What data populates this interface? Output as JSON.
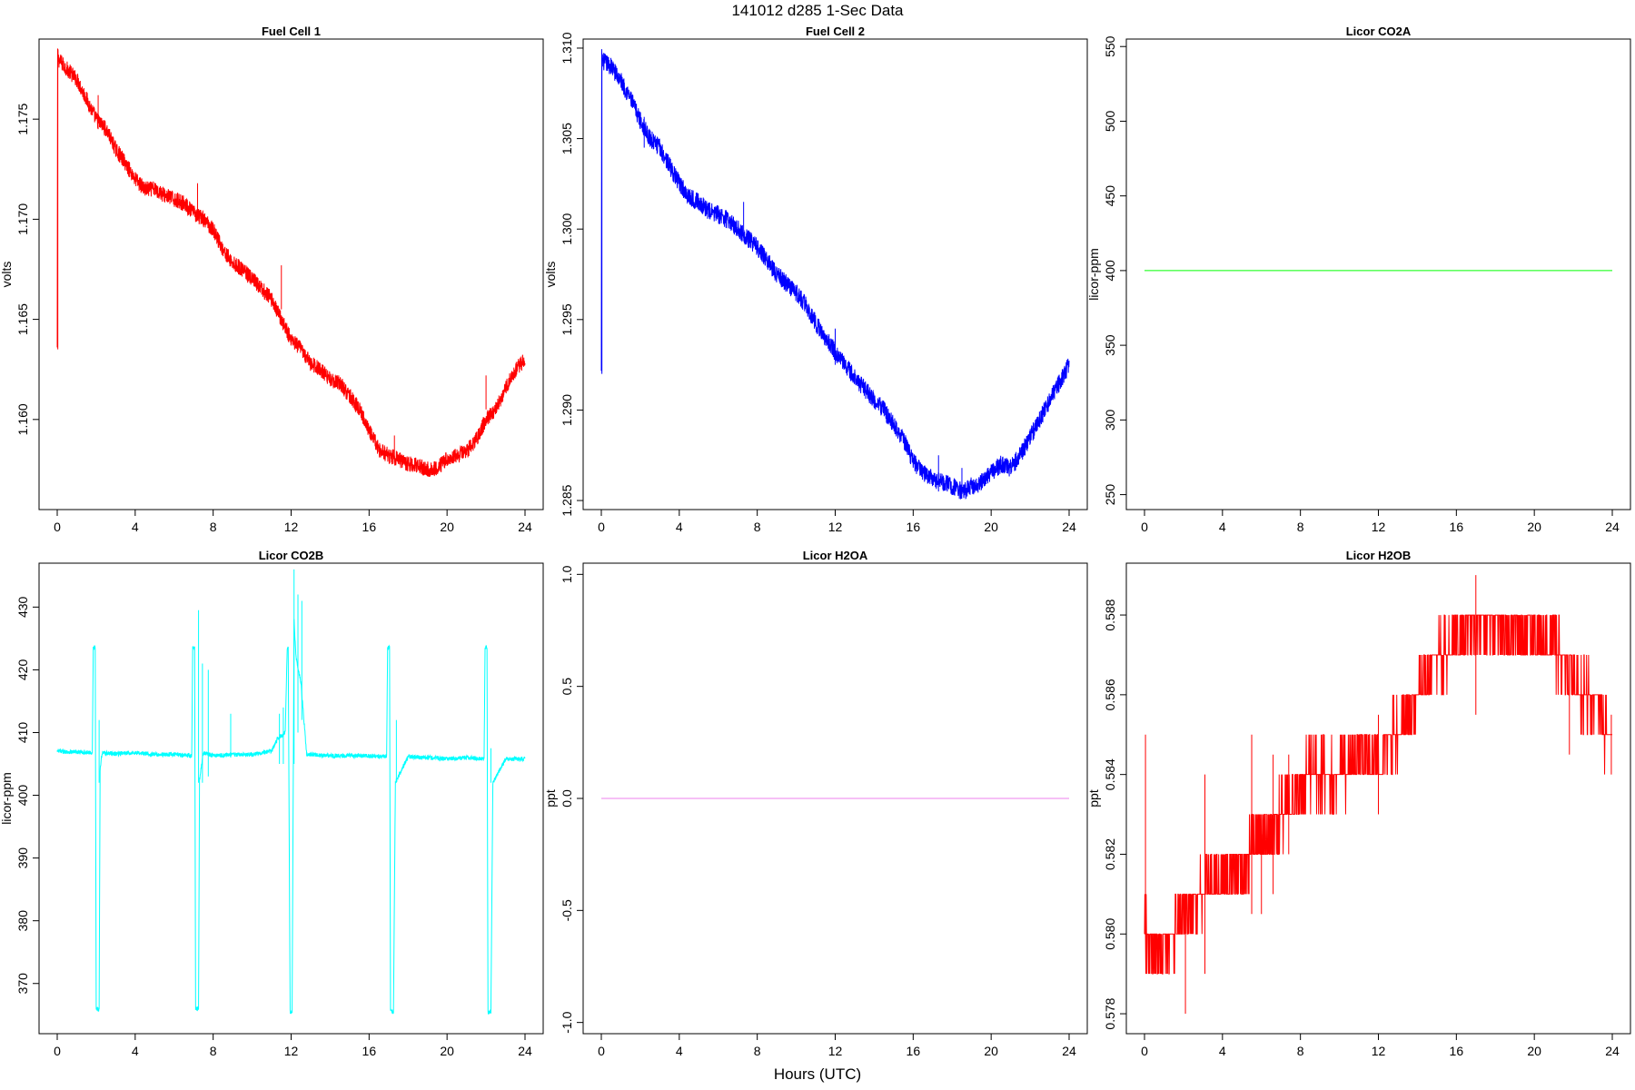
{
  "title": "141012   d285   1-Sec Data",
  "xlabel": "Hours (UTC)",
  "chart_data": [
    {
      "type": "line",
      "title": "Fuel Cell 1",
      "ylabel": "volts",
      "xlim": [
        0,
        24
      ],
      "ylim": [
        1.1555,
        1.179
      ],
      "xticks": [
        0,
        4,
        8,
        12,
        16,
        20,
        24
      ],
      "yticks": [
        1.16,
        1.165,
        1.17,
        1.175
      ],
      "ytick_labels": [
        "1.160",
        "1.165",
        "1.170",
        "1.175"
      ],
      "color": "#ff0000",
      "noise": 0.0004,
      "series": [
        {
          "x": [
            0,
            0.02,
            0.05,
            0.5,
            1,
            1.5,
            2,
            2.5,
            3,
            3.5,
            4,
            4.5,
            5,
            5.5,
            6,
            6.5,
            7,
            7.5,
            8,
            8.5,
            9,
            9.5,
            10,
            10.5,
            11,
            11.5,
            12,
            12.5,
            13,
            13.5,
            14,
            14.5,
            15,
            15.5,
            16,
            16.5,
            17,
            17.5,
            18,
            18.5,
            19,
            19.5,
            20,
            20.5,
            21,
            21.5,
            22,
            22.5,
            23,
            23.5,
            24
          ],
          "y": [
            1.1635,
            1.1785,
            1.178,
            1.1775,
            1.177,
            1.176,
            1.175,
            1.1745,
            1.1735,
            1.1728,
            1.172,
            1.1715,
            1.1715,
            1.1712,
            1.171,
            1.1708,
            1.1703,
            1.17,
            1.1695,
            1.1685,
            1.1678,
            1.1675,
            1.167,
            1.1665,
            1.166,
            1.165,
            1.164,
            1.1635,
            1.1628,
            1.1625,
            1.162,
            1.1618,
            1.1612,
            1.1605,
            1.1595,
            1.1585,
            1.1582,
            1.158,
            1.1578,
            1.1577,
            1.1575,
            1.1576,
            1.158,
            1.1582,
            1.1584,
            1.159,
            1.16,
            1.1605,
            1.1615,
            1.1625,
            1.163
          ]
        }
      ],
      "spikes": [
        [
          0.03,
          1.1635,
          1.1785
        ],
        [
          2.1,
          1.1745,
          1.1762
        ],
        [
          7.2,
          1.1702,
          1.1718
        ],
        [
          11.5,
          1.1655,
          1.1677
        ],
        [
          17.3,
          1.158,
          1.1592
        ],
        [
          22.0,
          1.1605,
          1.1622
        ]
      ]
    },
    {
      "type": "line",
      "title": "Fuel Cell 2",
      "ylabel": "volts",
      "xlim": [
        0,
        24
      ],
      "ylim": [
        1.2845,
        1.3105
      ],
      "xticks": [
        0,
        4,
        8,
        12,
        16,
        20,
        24
      ],
      "yticks": [
        1.285,
        1.29,
        1.295,
        1.3,
        1.305,
        1.31
      ],
      "ytick_labels": [
        "1.285",
        "1.290",
        "1.295",
        "1.300",
        "1.305",
        "1.310"
      ],
      "color": "#0000ff",
      "noise": 0.0005,
      "series": [
        {
          "x": [
            0,
            0.02,
            0.05,
            0.5,
            1,
            1.5,
            2,
            2.5,
            3,
            3.5,
            4,
            4.5,
            5,
            5.5,
            6,
            6.5,
            7,
            7.5,
            8,
            8.5,
            9,
            9.5,
            10,
            10.5,
            11,
            11.5,
            12,
            12.5,
            13,
            13.5,
            14,
            14.5,
            15,
            15.5,
            16,
            16.5,
            17,
            17.5,
            18,
            18.5,
            19,
            19.5,
            20,
            20.5,
            21,
            21.5,
            22,
            22.5,
            23,
            23.5,
            24
          ],
          "y": [
            1.292,
            1.3095,
            1.3093,
            1.309,
            1.3082,
            1.3072,
            1.306,
            1.305,
            1.3045,
            1.3035,
            1.3025,
            1.3018,
            1.3015,
            1.301,
            1.3008,
            1.3005,
            1.3,
            1.2995,
            1.299,
            1.2983,
            1.2975,
            1.297,
            1.2965,
            1.2958,
            1.2948,
            1.294,
            1.2932,
            1.2925,
            1.2918,
            1.2912,
            1.2905,
            1.29,
            1.2892,
            1.2884,
            1.2872,
            1.2865,
            1.2862,
            1.286,
            1.2858,
            1.2855,
            1.2858,
            1.286,
            1.2865,
            1.287,
            1.2868,
            1.2875,
            1.2885,
            1.2895,
            1.2905,
            1.2915,
            1.2925
          ]
        }
      ],
      "spikes": [
        [
          0.03,
          1.292,
          1.3095
        ],
        [
          2.2,
          1.3045,
          1.3062
        ],
        [
          7.3,
          1.2995,
          1.3015
        ],
        [
          12.0,
          1.2925,
          1.2945
        ],
        [
          17.3,
          1.2855,
          1.2875
        ],
        [
          18.5,
          1.2855,
          1.2868
        ]
      ]
    },
    {
      "type": "line",
      "title": "Licor CO2A",
      "ylabel": "licor-ppm",
      "xlim": [
        0,
        24
      ],
      "ylim": [
        240,
        555
      ],
      "xticks": [
        0,
        4,
        8,
        12,
        16,
        20,
        24
      ],
      "yticks": [
        250,
        300,
        350,
        400,
        450,
        500,
        550
      ],
      "ytick_labels": [
        "250",
        "300",
        "350",
        "400",
        "450",
        "500",
        "550"
      ],
      "color": "#00ff00",
      "noise": 0,
      "series": [
        {
          "x": [
            0,
            24
          ],
          "y": [
            400,
            400
          ]
        }
      ],
      "spikes": []
    },
    {
      "type": "line",
      "title": "Licor CO2B",
      "ylabel": "licor-ppm",
      "xlim": [
        0,
        24
      ],
      "ylim": [
        362,
        437
      ],
      "xticks": [
        0,
        4,
        8,
        12,
        16,
        20,
        24
      ],
      "yticks": [
        370,
        380,
        390,
        400,
        410,
        420,
        430
      ],
      "ytick_labels": [
        "370",
        "380",
        "390",
        "400",
        "410",
        "420",
        "430"
      ],
      "color": "#00ffff",
      "noise": 0.35,
      "series": [
        {
          "x": [
            0,
            1.8,
            1.85,
            1.95,
            2.0,
            2.05,
            2.15,
            2.2,
            2.3,
            3,
            4,
            5,
            6,
            6.9,
            6.95,
            7.05,
            7.1,
            7.15,
            7.25,
            7.3,
            7.5,
            8,
            9,
            10,
            11,
            11.3,
            11.7,
            11.8,
            11.85,
            11.95,
            12.0,
            12.05,
            12.15,
            12.25,
            12.5,
            12.8,
            13,
            14,
            15,
            16,
            16.9,
            16.95,
            17.05,
            17.1,
            17.15,
            17.25,
            17.35,
            18,
            19,
            20,
            21,
            21.9,
            21.95,
            22.05,
            22.1,
            22.15,
            22.25,
            22.35,
            23,
            24
          ],
          "y": [
            407,
            406.8,
            423.5,
            423.5,
            366,
            366,
            366,
            404,
            406.8,
            406.6,
            406.8,
            406.5,
            406.5,
            406.3,
            423.5,
            423.5,
            366,
            366,
            366,
            402.5,
            406.8,
            406.3,
            406.5,
            406.5,
            407,
            409,
            410,
            423.5,
            423.5,
            365.5,
            365.5,
            365.5,
            428,
            422,
            418,
            406.5,
            406.5,
            406.3,
            406.3,
            406.3,
            406.2,
            423.5,
            423.5,
            365.5,
            365.5,
            365.5,
            402,
            406.2,
            406,
            405.8,
            406,
            405.8,
            423.5,
            423.5,
            365.5,
            365.5,
            365.5,
            402,
            405.8,
            405.8
          ]
        }
      ],
      "spikes": [
        [
          2.15,
          402,
          412
        ],
        [
          7.25,
          402,
          429.5
        ],
        [
          7.45,
          402,
          421
        ],
        [
          7.75,
          403,
          420
        ],
        [
          8.9,
          406,
          413
        ],
        [
          11.4,
          405,
          413
        ],
        [
          11.6,
          405,
          414
        ],
        [
          12.15,
          405,
          436
        ],
        [
          12.35,
          410,
          432
        ],
        [
          12.55,
          412,
          431
        ],
        [
          17.4,
          402,
          412
        ],
        [
          22.25,
          402,
          407.5
        ]
      ]
    },
    {
      "type": "line",
      "title": "Licor H2OA",
      "ylabel": "ppt",
      "xlim": [
        0,
        24
      ],
      "ylim": [
        -1.05,
        1.05
      ],
      "xticks": [
        0,
        4,
        8,
        12,
        16,
        20,
        24
      ],
      "yticks": [
        -1.0,
        -0.5,
        0.0,
        0.5,
        1.0
      ],
      "ytick_labels": [
        "-1.0",
        "-0.5",
        "0.0",
        "0.5",
        "1.0"
      ],
      "color": "#ee82ee",
      "noise": 0,
      "series": [
        {
          "x": [
            0,
            24
          ],
          "y": [
            0,
            0
          ]
        }
      ],
      "spikes": []
    },
    {
      "type": "line",
      "title": "Licor H2OB",
      "ylabel": "ppt",
      "xlim": [
        0,
        24
      ],
      "ylim": [
        0.5775,
        0.5893
      ],
      "xticks": [
        0,
        4,
        8,
        12,
        16,
        20,
        24
      ],
      "yticks": [
        0.578,
        0.58,
        0.582,
        0.584,
        0.586,
        0.588
      ],
      "ytick_labels": [
        "0.578",
        "0.580",
        "0.582",
        "0.584",
        "0.586",
        "0.588"
      ],
      "color": "#ff0000",
      "noise": 0,
      "series": [
        {
          "x": [
            0,
            0.5,
            1,
            1.5,
            2,
            2.5,
            3,
            3.5,
            4,
            4.5,
            5,
            5.5,
            6,
            6.5,
            7,
            7.5,
            8,
            8.5,
            9,
            9.5,
            10,
            10.5,
            11,
            11.5,
            12,
            12.5,
            13,
            13.5,
            14,
            14.5,
            15,
            15.5,
            16,
            16.5,
            17,
            17.5,
            18,
            18.5,
            19,
            19.5,
            20,
            20.5,
            21,
            21.5,
            22,
            22.5,
            23,
            23.5,
            24
          ],
          "y": [
            0.58,
            0.5795,
            0.5795,
            0.58,
            0.5805,
            0.5805,
            0.581,
            0.5812,
            0.5815,
            0.5815,
            0.5815,
            0.582,
            0.5825,
            0.5825,
            0.583,
            0.5832,
            0.5838,
            0.584,
            0.584,
            0.5838,
            0.584,
            0.5842,
            0.5845,
            0.5845,
            0.5845,
            0.5848,
            0.585,
            0.5855,
            0.586,
            0.5865,
            0.587,
            0.587,
            0.5875,
            0.5877,
            0.5878,
            0.5878,
            0.5878,
            0.5877,
            0.5875,
            0.5875,
            0.5875,
            0.5875,
            0.5872,
            0.5868,
            0.5865,
            0.586,
            0.5858,
            0.5852,
            0.585
          ]
        }
      ],
      "step": 0.001,
      "spikes": [
        [
          0.05,
          0.58,
          0.585
        ],
        [
          2.1,
          0.578,
          0.581
        ],
        [
          3.1,
          0.579,
          0.584
        ],
        [
          5.5,
          0.5805,
          0.585
        ],
        [
          6.0,
          0.5805,
          0.5825
        ],
        [
          6.6,
          0.581,
          0.5845
        ],
        [
          7.4,
          0.582,
          0.5845
        ],
        [
          12.0,
          0.583,
          0.5855
        ],
        [
          17.0,
          0.5855,
          0.589
        ],
        [
          21.8,
          0.5845,
          0.587
        ],
        [
          23.95,
          0.584,
          0.5855
        ]
      ]
    }
  ]
}
